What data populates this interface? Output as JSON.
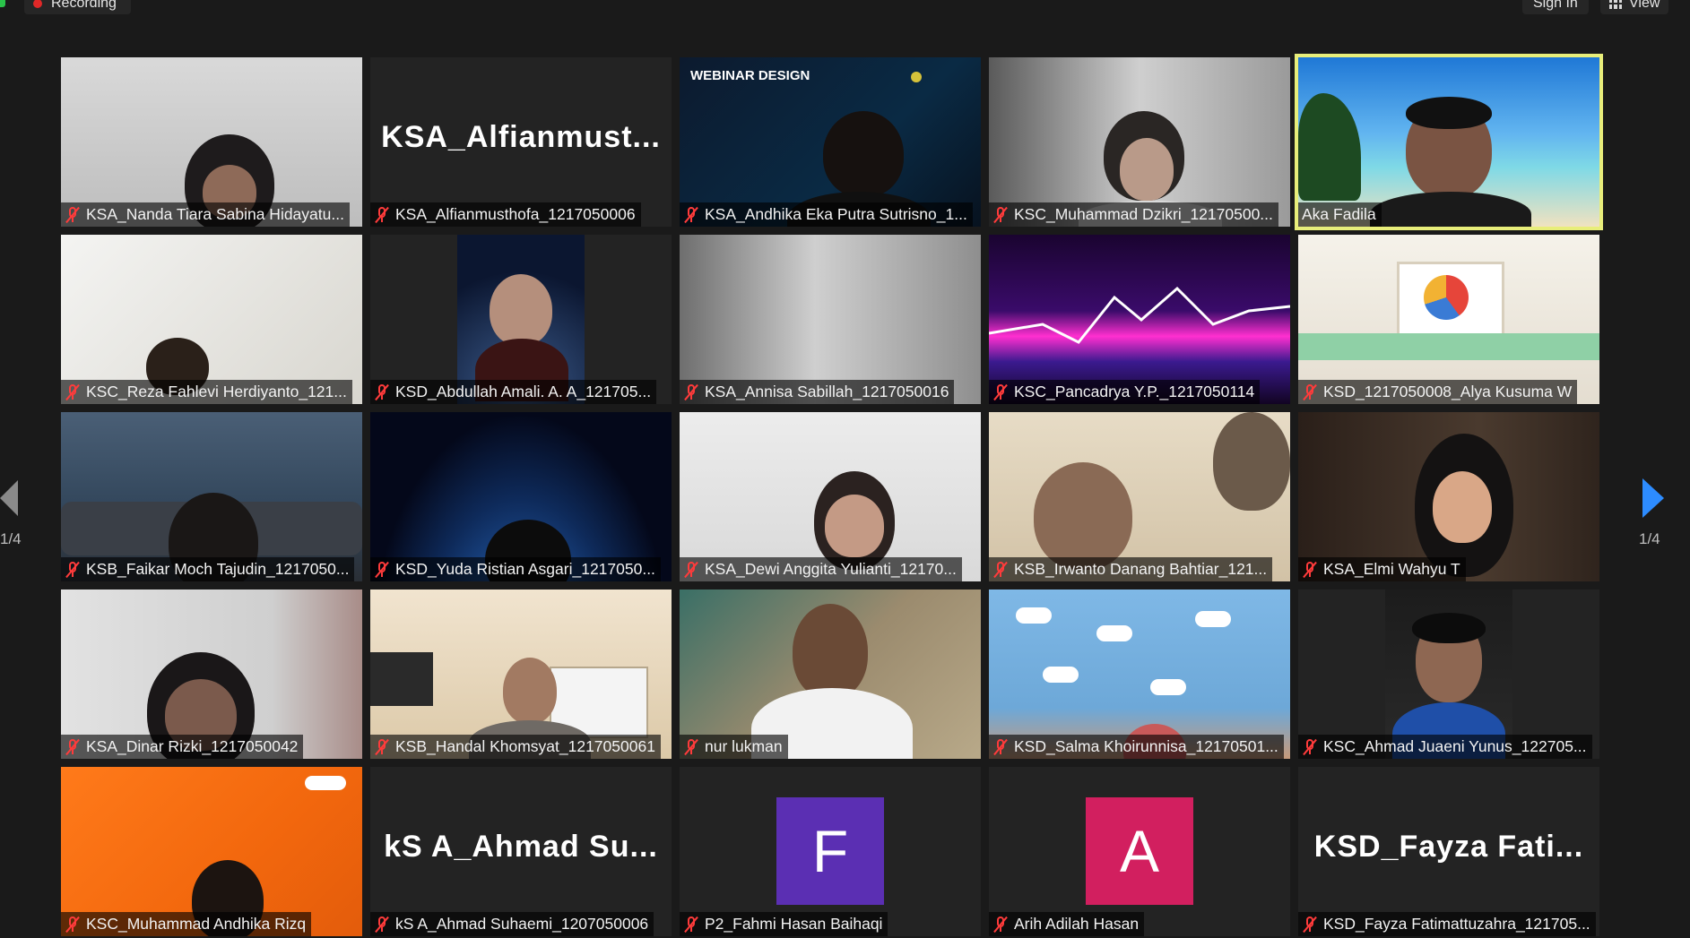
{
  "topbar": {
    "recording_label": "Recording",
    "signin_label": "Sign In",
    "view_label": "View"
  },
  "pagination": {
    "left": "1/4",
    "right": "1/4"
  },
  "participants": [
    {
      "name": "KSA_Nanda Tiara Sabina Hidayatu...",
      "muted": true
    },
    {
      "name": "KSA_Alfianmusthofa_1217050006",
      "display": "KSA_Alfianmust...",
      "muted": true
    },
    {
      "name": "KSA_Andhika Eka Putra Sutrisno_1...",
      "overlay": "WEBINAR DESIGN",
      "muted": true
    },
    {
      "name": "KSC_Muhammad Dzikri_12170500...",
      "muted": true
    },
    {
      "name": "Aka Fadila",
      "muted": false,
      "active": true
    },
    {
      "name": "KSC_Reza Fahlevi Herdiyanto_121...",
      "muted": true
    },
    {
      "name": "KSD_Abdullah Amali. A. A_121705...",
      "muted": true
    },
    {
      "name": "KSA_Annisa Sabillah_1217050016",
      "muted": true
    },
    {
      "name": "KSC_Pancadrya Y.P._1217050114",
      "muted": true
    },
    {
      "name": "KSD_1217050008_Alya Kusuma W",
      "muted": true
    },
    {
      "name": "KSB_Faikar Moch Tajudin_1217050...",
      "muted": true
    },
    {
      "name": "KSD_Yuda Ristian Asgari_1217050...",
      "muted": true
    },
    {
      "name": "KSA_Dewi Anggita Yulianti_12170...",
      "muted": true
    },
    {
      "name": "KSB_Irwanto Danang Bahtiar_121...",
      "muted": true
    },
    {
      "name": "KSA_Elmi Wahyu T",
      "muted": true
    },
    {
      "name": "KSA_Dinar Rizki_1217050042",
      "muted": true
    },
    {
      "name": "KSB_Handal Khomsyat_1217050061",
      "muted": true
    },
    {
      "name": "nur lukman",
      "muted": true
    },
    {
      "name": "KSD_Salma Khoirunnisa_12170501...",
      "muted": true
    },
    {
      "name": "KSC_Ahmad Juaeni Yunus_122705...",
      "muted": true
    },
    {
      "name": "KSC_Muhammad Andhika Rizq",
      "muted": true
    },
    {
      "name": "kS A_Ahmad Suhaemi_1207050006",
      "display": "kS A_Ahmad Su...",
      "muted": true
    },
    {
      "name": "P2_Fahmi Hasan Baihaqi",
      "avatar_letter": "F",
      "avatar_color": "#5b2fb3",
      "muted": true
    },
    {
      "name": "Arih Adilah Hasan",
      "avatar_letter": "A",
      "avatar_color": "#d21f5f",
      "muted": true
    },
    {
      "name": "KSD_Fayza Fatimattuzahra_121705...",
      "display": "KSD_Fayza  Fati...",
      "muted": true
    }
  ],
  "colors": {
    "active_border": "#e8ee7a",
    "mute_icon": "#ff3b3b",
    "nav_arrow": "#2d8cff"
  }
}
